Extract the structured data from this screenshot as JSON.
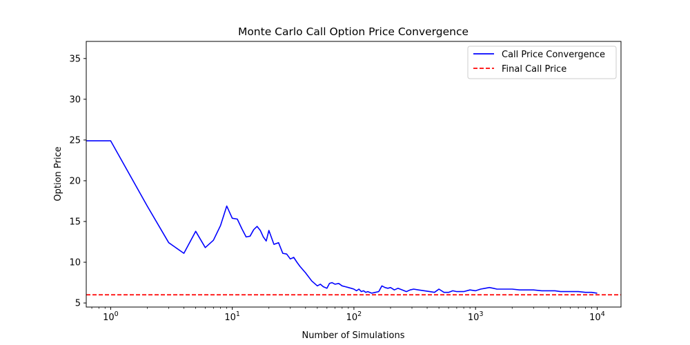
{
  "chart_data": {
    "type": "line",
    "title": "Monte Carlo Call Option Price Convergence",
    "xlabel": "Number of Simulations",
    "ylabel": "Option Price",
    "xscale": "log",
    "xlim": [
      0.63,
      15700
    ],
    "ylim": [
      4.5,
      37.1
    ],
    "grid": false,
    "legend_position": "top-right",
    "x_ticks": [
      {
        "value": 1,
        "base": "10",
        "exp": "0"
      },
      {
        "value": 10,
        "base": "10",
        "exp": "1"
      },
      {
        "value": 100,
        "base": "10",
        "exp": "2"
      },
      {
        "value": 1000,
        "base": "10",
        "exp": "3"
      },
      {
        "value": 10000,
        "base": "10",
        "exp": "4"
      }
    ],
    "y_ticks": [
      5,
      10,
      15,
      20,
      25,
      30,
      35
    ],
    "series": [
      {
        "name": "Call Price Convergence",
        "color": "#0000ff",
        "style": "solid",
        "x": [
          0.63,
          1,
          2,
          3,
          4,
          5,
          6,
          7,
          8,
          9,
          10,
          11,
          12,
          13,
          14,
          15,
          16,
          17,
          18,
          19,
          20,
          22,
          24,
          26,
          28,
          30,
          32,
          34,
          36,
          40,
          45,
          50,
          53,
          56,
          60,
          63,
          66,
          70,
          75,
          80,
          85,
          90,
          95,
          100,
          105,
          110,
          115,
          120,
          125,
          130,
          140,
          150,
          160,
          170,
          180,
          190,
          200,
          215,
          230,
          250,
          270,
          290,
          310,
          340,
          380,
          420,
          460,
          500,
          550,
          600,
          650,
          700,
          800,
          900,
          1000,
          1100,
          1200,
          1300,
          1400,
          1500,
          1700,
          2000,
          2300,
          2600,
          3000,
          3500,
          4000,
          4500,
          5000,
          6000,
          7000,
          8000,
          9000,
          10000
        ],
        "y": [
          24.9,
          24.9,
          16.9,
          12.4,
          11.1,
          13.8,
          11.8,
          12.7,
          14.5,
          16.9,
          15.4,
          15.3,
          14.1,
          13.1,
          13.2,
          14.0,
          14.4,
          13.9,
          13.1,
          12.6,
          13.9,
          12.2,
          12.4,
          11.1,
          11.0,
          10.4,
          10.6,
          10.0,
          9.5,
          8.7,
          7.7,
          7.1,
          7.3,
          7.0,
          6.8,
          7.4,
          7.5,
          7.3,
          7.4,
          7.1,
          7.0,
          6.9,
          6.8,
          6.7,
          6.5,
          6.7,
          6.4,
          6.5,
          6.3,
          6.4,
          6.2,
          6.3,
          6.4,
          7.1,
          6.9,
          6.8,
          6.9,
          6.6,
          6.8,
          6.6,
          6.4,
          6.6,
          6.7,
          6.6,
          6.5,
          6.4,
          6.3,
          6.7,
          6.3,
          6.3,
          6.5,
          6.4,
          6.4,
          6.6,
          6.5,
          6.7,
          6.8,
          6.9,
          6.8,
          6.7,
          6.7,
          6.7,
          6.6,
          6.6,
          6.6,
          6.5,
          6.5,
          6.5,
          6.4,
          6.4,
          6.4,
          6.3,
          6.3,
          6.2
        ]
      },
      {
        "name": "Final Call Price",
        "color": "#ff0000",
        "style": "dashed",
        "y_constant": 6.0
      }
    ]
  }
}
